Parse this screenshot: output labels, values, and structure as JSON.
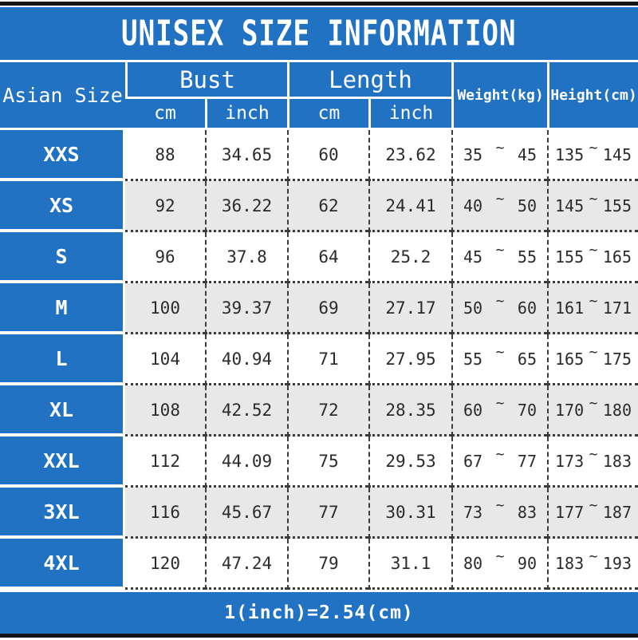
{
  "title": "UNISEX SIZE INFORMATION",
  "footer_note": "1(inch)=2.54(cm)",
  "colors": {
    "accent_blue": "#2272c4",
    "alt_row_gray": "#e8e8e8",
    "bar_black": "#151515",
    "text_dark": "#2b2b2b",
    "text_light": "#ffffff"
  },
  "chart_data": {
    "type": "table",
    "title": "UNISEX SIZE INFORMATION",
    "corner_header": "Asian Size",
    "column_groups": [
      {
        "label": "Bust",
        "children": [
          "cm",
          "inch"
        ]
      },
      {
        "label": "Length",
        "children": [
          "cm",
          "inch"
        ]
      },
      {
        "label": "Weight(kg)",
        "children": []
      },
      {
        "label": "Height(cm)",
        "children": []
      }
    ],
    "range_separator": "~",
    "rows": [
      {
        "size": "XXS",
        "bust_cm": "88",
        "bust_inch": "34.65",
        "length_cm": "60",
        "length_inch": "23.62",
        "weight_min": "35",
        "weight_max": "45",
        "height_min": "135",
        "height_max": "145"
      },
      {
        "size": "XS",
        "bust_cm": "92",
        "bust_inch": "36.22",
        "length_cm": "62",
        "length_inch": "24.41",
        "weight_min": "40",
        "weight_max": "50",
        "height_min": "145",
        "height_max": "155"
      },
      {
        "size": "S",
        "bust_cm": "96",
        "bust_inch": "37.8",
        "length_cm": "64",
        "length_inch": "25.2",
        "weight_min": "45",
        "weight_max": "55",
        "height_min": "155",
        "height_max": "165"
      },
      {
        "size": "M",
        "bust_cm": "100",
        "bust_inch": "39.37",
        "length_cm": "69",
        "length_inch": "27.17",
        "weight_min": "50",
        "weight_max": "60",
        "height_min": "161",
        "height_max": "171"
      },
      {
        "size": "L",
        "bust_cm": "104",
        "bust_inch": "40.94",
        "length_cm": "71",
        "length_inch": "27.95",
        "weight_min": "55",
        "weight_max": "65",
        "height_min": "165",
        "height_max": "175"
      },
      {
        "size": "XL",
        "bust_cm": "108",
        "bust_inch": "42.52",
        "length_cm": "72",
        "length_inch": "28.35",
        "weight_min": "60",
        "weight_max": "70",
        "height_min": "170",
        "height_max": "180"
      },
      {
        "size": "XXL",
        "bust_cm": "112",
        "bust_inch": "44.09",
        "length_cm": "75",
        "length_inch": "29.53",
        "weight_min": "67",
        "weight_max": "77",
        "height_min": "173",
        "height_max": "183"
      },
      {
        "size": "3XL",
        "bust_cm": "116",
        "bust_inch": "45.67",
        "length_cm": "77",
        "length_inch": "30.31",
        "weight_min": "73",
        "weight_max": "83",
        "height_min": "177",
        "height_max": "187"
      },
      {
        "size": "4XL",
        "bust_cm": "120",
        "bust_inch": "47.24",
        "length_cm": "79",
        "length_inch": "31.1",
        "weight_min": "80",
        "weight_max": "90",
        "height_min": "183",
        "height_max": "193"
      }
    ]
  }
}
